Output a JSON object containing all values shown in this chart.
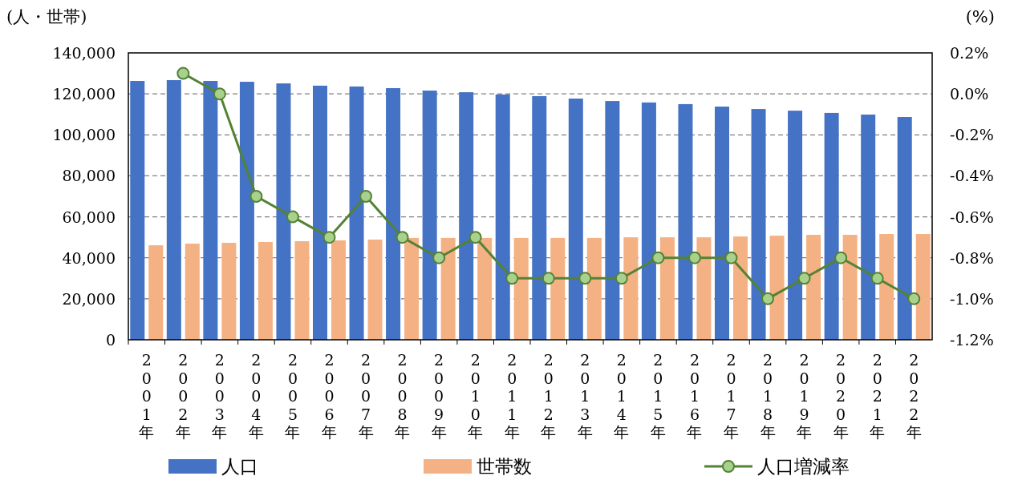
{
  "chart_data": {
    "type": "bar",
    "ylabel": "(人・世帯)",
    "y2label": "(%)",
    "categories": [
      "2001年",
      "2002年",
      "2003年",
      "2004年",
      "2005年",
      "2006年",
      "2007年",
      "2008年",
      "2009年",
      "2010年",
      "2011年",
      "2012年",
      "2013年",
      "2014年",
      "2015年",
      "2016年",
      "2017年",
      "2018年",
      "2019年",
      "2020年",
      "2021年",
      "2022年"
    ],
    "series": [
      {
        "name": "人口",
        "color": "#4472c4",
        "values": [
          126300,
          126700,
          126300,
          125900,
          125100,
          124000,
          123600,
          122800,
          121600,
          120800,
          119700,
          118900,
          117700,
          116500,
          115800,
          115000,
          113800,
          112600,
          111800,
          110700,
          109900,
          108700
        ]
      },
      {
        "name": "世帯数",
        "color": "#f4b183",
        "values": [
          46100,
          46900,
          47300,
          47700,
          48100,
          48500,
          48900,
          49700,
          49700,
          49700,
          49700,
          49700,
          49700,
          50000,
          50000,
          50000,
          50400,
          50800,
          51200,
          51200,
          51600,
          51600
        ]
      },
      {
        "name": "人口増減率",
        "type": "line",
        "axis": "y2",
        "color": "#548235",
        "marker": "circle",
        "values": [
          null,
          0.1,
          0.0,
          -0.5,
          -0.6,
          -0.7,
          -0.5,
          -0.7,
          -0.8,
          -0.7,
          -0.9,
          -0.9,
          -0.9,
          -0.9,
          -0.8,
          -0.8,
          -0.8,
          -1.0,
          -0.9,
          -0.8,
          -0.9,
          -1.0
        ]
      }
    ],
    "ylim": [
      0,
      140000
    ],
    "yticks": [
      0,
      {
        "value": 20000,
        "label": "20,000"
      },
      {
        "value": 40000,
        "label": "40,000"
      },
      {
        "value": 60000,
        "label": "60,000"
      },
      {
        "value": 80000,
        "label": "80,000"
      },
      {
        "value": 100000,
        "label": "100,000"
      },
      {
        "value": 120000,
        "label": "120,000"
      },
      {
        "value": 140000,
        "label": "140,000"
      }
    ],
    "y2lim": [
      -1.2,
      0.2
    ],
    "y2ticks": [
      {
        "value": -1.2,
        "label": "-1.2%"
      },
      {
        "value": -1.0,
        "label": "-1.0%"
      },
      {
        "value": -0.8,
        "label": "-0.8%"
      },
      {
        "value": -0.6,
        "label": "-0.6%"
      },
      {
        "value": -0.4,
        "label": "-0.4%"
      },
      {
        "value": -0.2,
        "label": "-0.2%"
      },
      {
        "value": 0.0,
        "label": "0.0%"
      },
      {
        "value": 0.2,
        "label": "0.2%"
      }
    ],
    "grid": "y",
    "legend": "bottom"
  }
}
